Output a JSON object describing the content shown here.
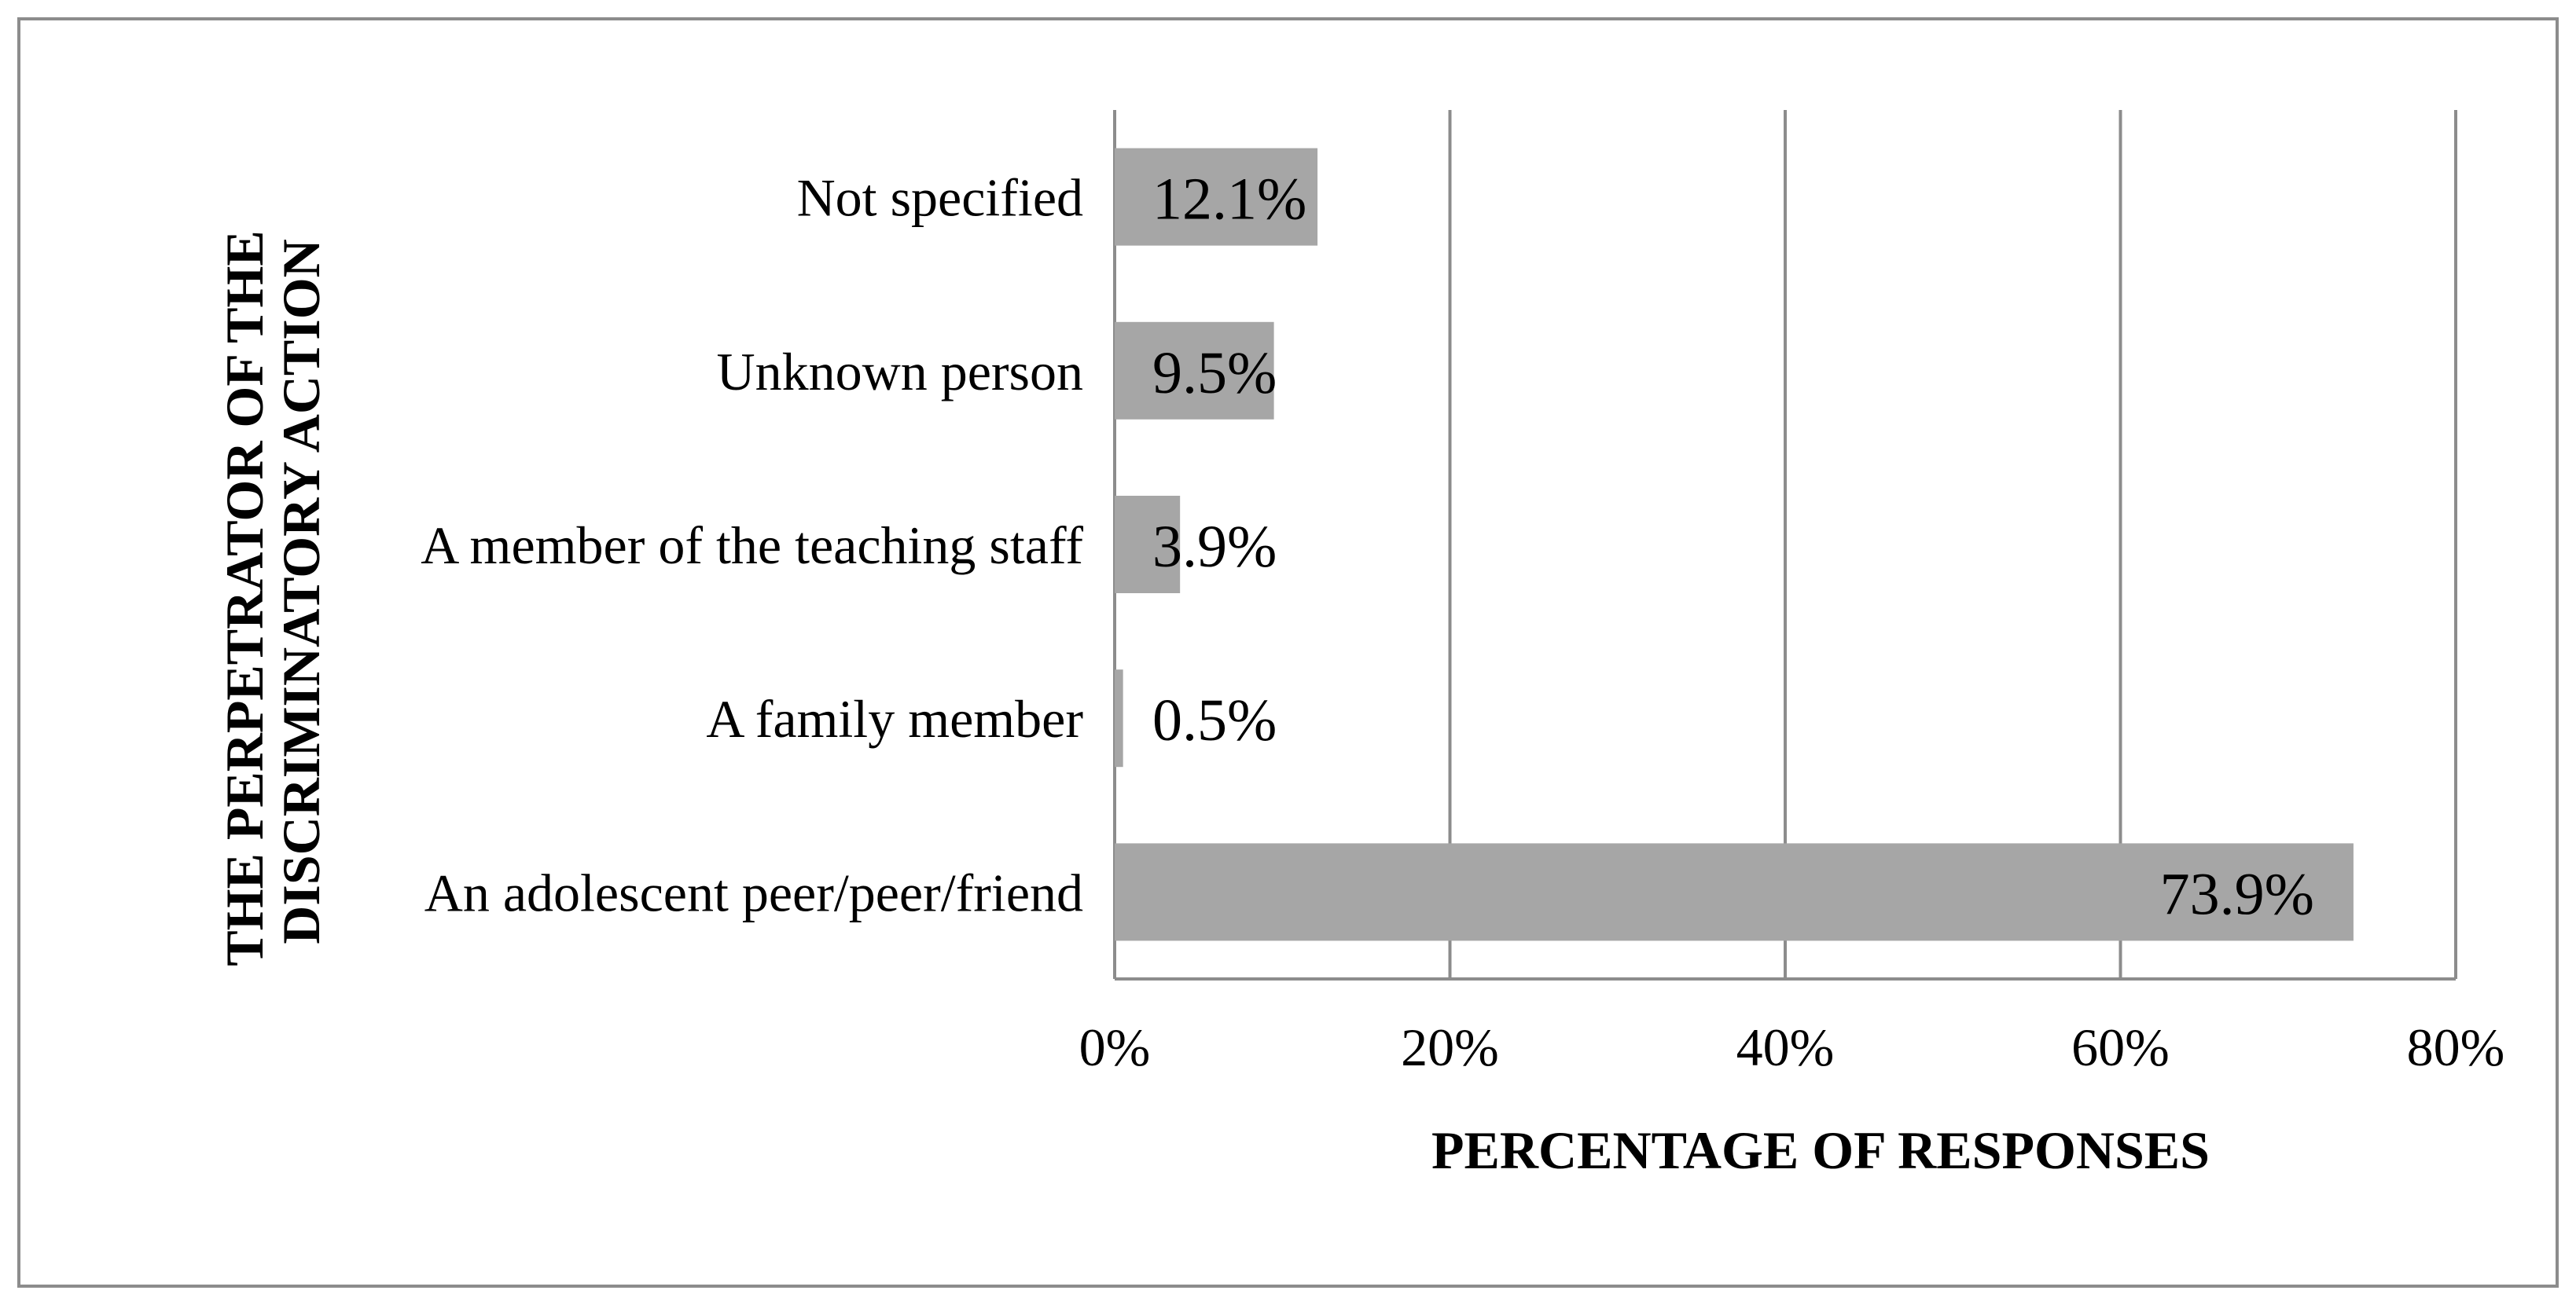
{
  "chart_data": {
    "type": "bar",
    "orientation": "horizontal",
    "categories": [
      "Not specified",
      "Unknown person",
      "A member of the teaching staff",
      "A family member",
      "An adolescent peer/peer/friend"
    ],
    "values": [
      12.1,
      9.5,
      3.9,
      0.5,
      73.9
    ],
    "data_labels": [
      "12.1%",
      "9.5%",
      "3.9%",
      "0.5%",
      "73.9%"
    ],
    "xlabel": "PERCENTAGE OF RESPONSES",
    "ylabel_lines": [
      "THE PERPETRATOR OF THE",
      "DISCRIMINATORY ACTION"
    ],
    "xlim": [
      0,
      80
    ],
    "x_ticks": [
      "0%",
      "20%",
      "40%",
      "60%",
      "80%"
    ],
    "x_tick_values": [
      0,
      20,
      40,
      60,
      80
    ],
    "grid": "vertical",
    "legend": "none",
    "bar_color": "#a6a6a6",
    "grid_color": "#8c8c8c"
  }
}
